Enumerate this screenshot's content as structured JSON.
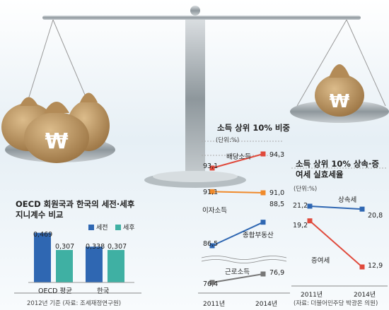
{
  "colors": {
    "sky_top": "#e8f1f6",
    "sky_bottom": "#f7fafc",
    "beam": "#7b7b7b",
    "pan": "#9aa3a8",
    "bag": "#c8a06a",
    "bag_dark": "#9b7443",
    "blue": "#2f67b2",
    "teal": "#3fb0a3",
    "red": "#e04a3c",
    "orange": "#f08a2b",
    "gray": "#777777"
  },
  "icons": {
    "won_symbol": "₩",
    "money_bag": "money-bag-icon",
    "balance_scale": "balance-scale-icon"
  },
  "chart_data": [
    {
      "type": "bar",
      "title": "OECD 회원국과 한국의 세전·세후 지니계수 비교",
      "categories": [
        "OECD 평균",
        "한국"
      ],
      "series": [
        {
          "name": "세전",
          "color": "#2f67b2",
          "values": [
            0.469,
            0.338
          ],
          "labels": [
            "0,469",
            "0,338"
          ]
        },
        {
          "name": "세후",
          "color": "#3fb0a3",
          "values": [
            0.307,
            0.307
          ],
          "labels": [
            "0,307",
            "0,307"
          ]
        }
      ],
      "ylim": [
        0,
        0.5
      ],
      "note": "2012년 기준 (자료: 조세재정연구원)"
    },
    {
      "type": "line",
      "title": "소득 상위 10% 비중",
      "unit": "(단위:%)",
      "x": [
        "2011년",
        "2014년"
      ],
      "series": [
        {
          "name": "배당소득",
          "color": "#e04a3c",
          "values": [
            93.1,
            94.3
          ],
          "labels": [
            "93,1",
            "94,3"
          ]
        },
        {
          "name": "이자소득",
          "color": "#f08a2b",
          "values": [
            91.1,
            91.0
          ],
          "labels": [
            "91,1",
            "91,0"
          ]
        },
        {
          "name": "종합부동산",
          "color": "#2f67b2",
          "values": [
            86.5,
            88.5
          ],
          "labels": [
            "86,5",
            "88,5"
          ]
        },
        {
          "name": "근로소득",
          "color": "#777777",
          "values": [
            76.4,
            76.9
          ],
          "labels": [
            "76,4",
            "76,9"
          ]
        }
      ]
    },
    {
      "type": "line",
      "title": "소득 상위 10% 상속·증여세 실효세율",
      "unit": "(단위:%)",
      "x": [
        "2011년",
        "2014년"
      ],
      "series": [
        {
          "name": "상속세",
          "color": "#2f67b2",
          "values": [
            21.2,
            20.8
          ],
          "labels": [
            "21,2",
            "20,8"
          ]
        },
        {
          "name": "증여세",
          "color": "#e04a3c",
          "values": [
            19.2,
            12.9
          ],
          "labels": [
            "19,2",
            "12,9"
          ]
        }
      ],
      "source": "(자료: 더불어민주당 박광온 의원)"
    }
  ]
}
